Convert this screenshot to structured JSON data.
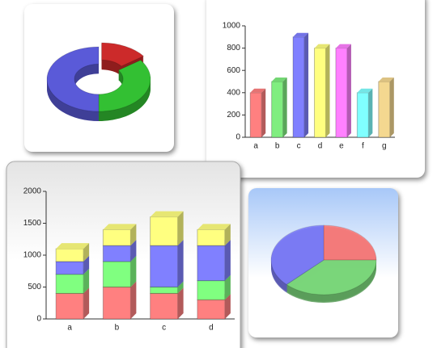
{
  "chart_data": [
    {
      "type": "donut",
      "values": [
        15,
        35,
        50
      ],
      "colors": [
        "#cc2a2a",
        "#33c033",
        "#5a5ad8"
      ]
    },
    {
      "type": "bar",
      "categories": [
        "a",
        "b",
        "c",
        "d",
        "e",
        "f",
        "g"
      ],
      "values": [
        400,
        500,
        900,
        800,
        800,
        400,
        500
      ],
      "colors": [
        "#ff8080",
        "#80ee80",
        "#8080ff",
        "#ffff80",
        "#ff80ff",
        "#80ffff",
        "#f4d890"
      ],
      "ylim": [
        0,
        1000
      ],
      "yticks": [
        0,
        200,
        400,
        600,
        800,
        1000
      ]
    },
    {
      "type": "stacked_bar",
      "categories": [
        "a",
        "b",
        "c",
        "d"
      ],
      "series": [
        {
          "color": "#ff8080",
          "values": [
            400,
            500,
            400,
            300
          ]
        },
        {
          "color": "#80ff80",
          "values": [
            300,
            400,
            100,
            300
          ]
        },
        {
          "color": "#8080ff",
          "values": [
            200,
            250,
            650,
            550
          ]
        },
        {
          "color": "#ffff80",
          "values": [
            200,
            250,
            450,
            250
          ]
        }
      ],
      "ylim": [
        0,
        2000
      ],
      "yticks": [
        0,
        500,
        1000,
        1500,
        2000
      ]
    },
    {
      "type": "pie",
      "values": [
        25,
        37.5,
        37.5
      ],
      "colors": [
        "#ff8080",
        "#80e080",
        "#8080ff"
      ]
    }
  ]
}
